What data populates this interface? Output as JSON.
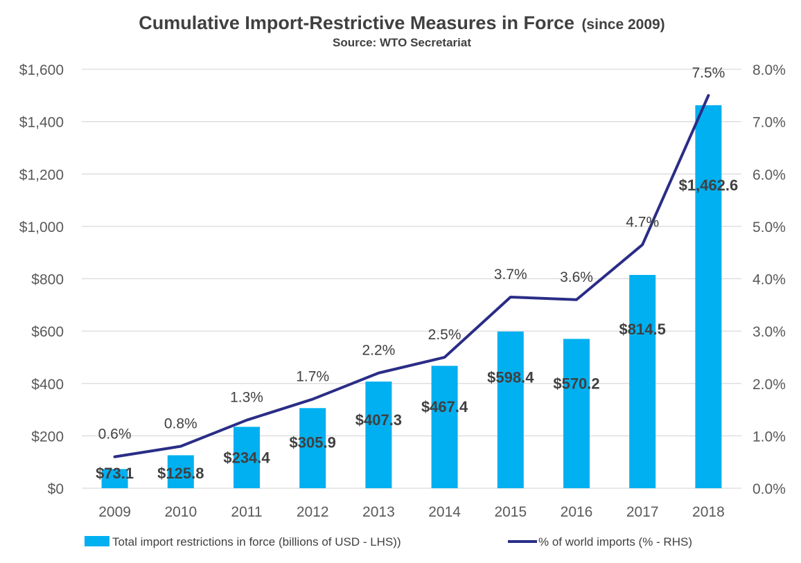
{
  "chart_data": {
    "type": "bar",
    "title": "Cumulative Import-Restrictive Measures in Force",
    "title_suffix": "(since 2009)",
    "subtitle": "Source: WTO Secretariat",
    "categories": [
      "2009",
      "2010",
      "2011",
      "2012",
      "2013",
      "2014",
      "2015",
      "2016",
      "2017",
      "2018"
    ],
    "series": [
      {
        "name": "Total import restrictions in force (billions of USD - LHS))",
        "type": "bar",
        "axis": "left",
        "color": "#00b0f0",
        "values": [
          73.1,
          125.8,
          234.4,
          305.9,
          407.3,
          467.4,
          598.4,
          570.2,
          814.5,
          1462.6
        ],
        "labels": [
          "$73.1",
          "$125.8",
          "$234.4",
          "$305.9",
          "$407.3",
          "$467.4",
          "$598.4",
          "$570.2",
          "$814.5",
          "$1,462.6"
        ]
      },
      {
        "name": "% of world imports (% - RHS)",
        "type": "line",
        "axis": "right",
        "color": "#2a2d86",
        "values": [
          0.6,
          0.8,
          1.3,
          1.7,
          2.2,
          2.5,
          3.65,
          3.6,
          4.65,
          7.5
        ],
        "labels": [
          "0.6%",
          "0.8%",
          "1.3%",
          "1.7%",
          "2.2%",
          "2.5%",
          "3.7%",
          "3.6%",
          "4.7%",
          "7.5%"
        ]
      }
    ],
    "y_left": {
      "lim": [
        0,
        1600
      ],
      "ticks": [
        0,
        200,
        400,
        600,
        800,
        1000,
        1200,
        1400,
        1600
      ],
      "tick_labels": [
        "$0",
        "$200",
        "$400",
        "$600",
        "$800",
        "$1,000",
        "$1,200",
        "$1,400",
        "$1,600"
      ]
    },
    "y_right": {
      "lim": [
        0,
        8
      ],
      "ticks": [
        0,
        1,
        2,
        3,
        4,
        5,
        6,
        7,
        8
      ],
      "tick_labels": [
        "0.0%",
        "1.0%",
        "2.0%",
        "3.0%",
        "4.0%",
        "5.0%",
        "6.0%",
        "7.0%",
        "8.0%"
      ]
    },
    "grid": true,
    "gridline_color": "#d9d9d9",
    "legend_position": "bottom"
  }
}
